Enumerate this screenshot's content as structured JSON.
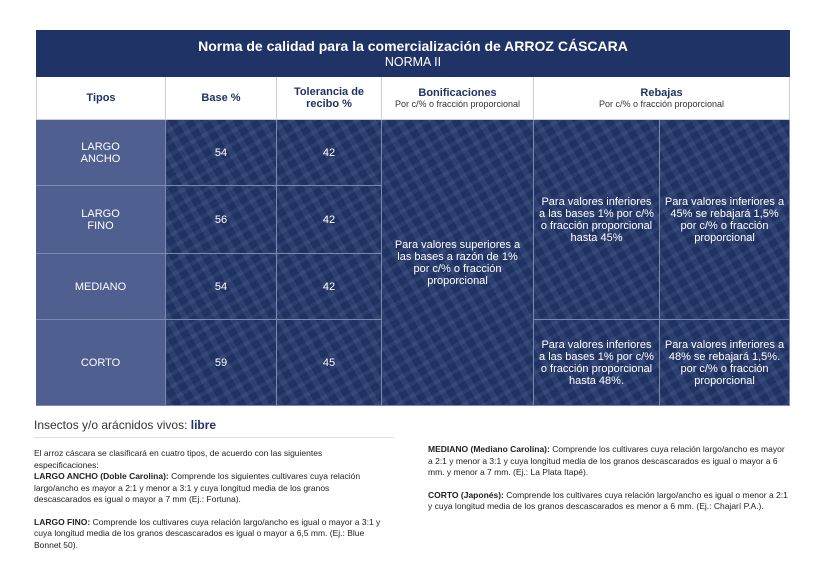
{
  "title": "Norma de calidad para la comercialización de ARROZ CÁSCARA",
  "subtitle": "NORMA II",
  "headers": {
    "tipos": "Tipos",
    "base": "Base %",
    "tolerancia": "Tolerancia de recibo %",
    "bonificaciones": "Bonificaciones",
    "bonificaciones_sub": "Por c/% o fracción proporcional",
    "rebajas": "Rebajas",
    "rebajas_sub": "Por c/% o fracción proporcional"
  },
  "rows": [
    {
      "tipo": "LARGO ANCHO",
      "base": "54",
      "tolerancia": "42"
    },
    {
      "tipo": "LARGO FINO",
      "base": "56",
      "tolerancia": "42"
    },
    {
      "tipo": "MEDIANO",
      "base": "54",
      "tolerancia": "42"
    },
    {
      "tipo": "CORTO",
      "base": "59",
      "tolerancia": "45"
    }
  ],
  "bonificacion": "Para valores superiores a las bases a razón de 1% por c/% o fracción proporcional",
  "rebajas": {
    "a1": "Para valores inferiores a las bases 1% por c/% o fracción proporcional hasta 45%",
    "b1": "Para valores inferiores a 45% se rebajará 1,5% por c/% o fracción proporcional",
    "a2": "Para valores inferiores a las bases 1% por c/% o fracción proporcional hasta 48%.",
    "b2": "Para valores inferiores a 48% se rebajará 1,5%. por c/% o fracción proporcional"
  },
  "insectos_label": "Insectos y/o arácnidos vivos:",
  "insectos_value": "libre",
  "notes": {
    "intro": "El arroz cáscara se clasificará en cuatro tipos, de acuerdo con las siguientes especificaciones:",
    "largo_ancho_label": "LARGO ANCHO (Doble Carolina):",
    "largo_ancho": " Comprende los siguientes cultivares cuya relación largo/ancho es mayor a 2:1 y menor a 3:1 y cuya longitud media de los granos descascarados es igual o mayor a 7 mm (Ej.: Fortuna).",
    "largo_fino_label": "LARGO FINO:",
    "largo_fino": " Comprende los cultivares cuya relación largo/ancho es igual o mayor a 3:1 y cuya longitud media de los granos descascarados es igual o mayor a 6,5 mm. (Ej.: Blue Bonnet 50).",
    "mediano_label": "MEDIANO (Mediano Carolina):",
    "mediano": " Comprende los cultivares cuya relación largo/ancho es mayor a 2:1 y menor a 3:1 y cuya longitud media de los granos descascarados es igual o mayor a 6 mm. y menor a 7 mm.  (Ej.: La Plata Itapé).",
    "corto_label": "CORTO (Japonés):",
    "corto": " Comprende los cultivares cuya relación largo/ancho es igual o menor a 2:1 y cuya longitud media de los granos descascarados es menor a 6 mm. (Ej.: Chajarí P.A.)."
  }
}
